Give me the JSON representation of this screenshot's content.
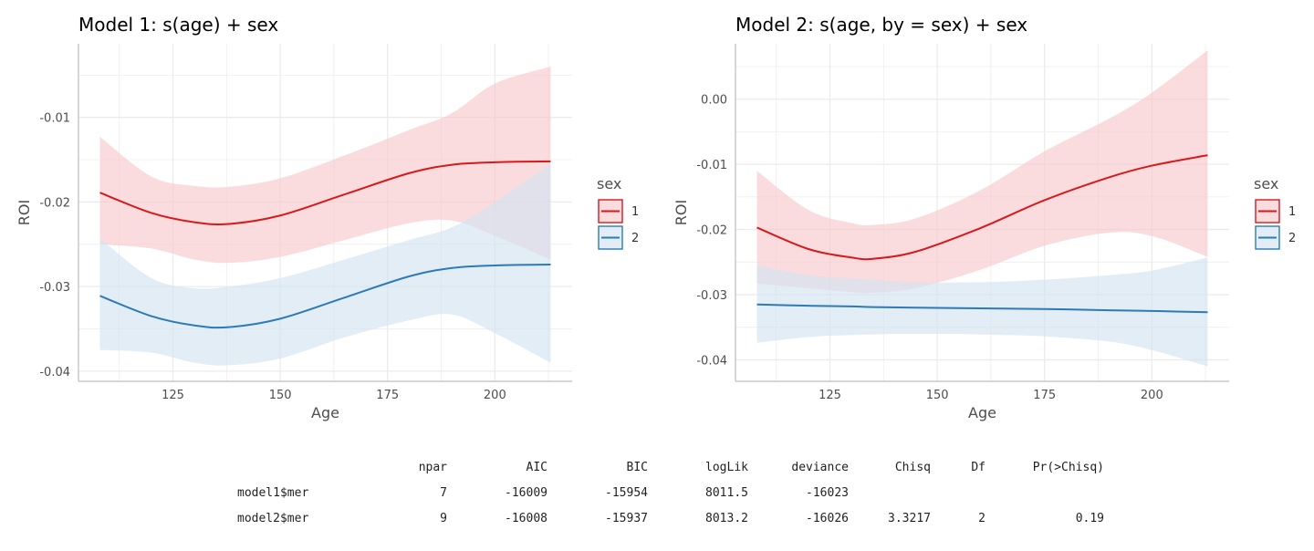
{
  "chart_data": [
    {
      "type": "line",
      "title": "Model 1: s(age) + sex",
      "xlabel": "Age",
      "ylabel": "ROI",
      "xlim": [
        103,
        218
      ],
      "ylim": [
        -0.0412,
        -0.0013
      ],
      "xticks": [
        125,
        150,
        175,
        200
      ],
      "xtick_labels": [
        "125",
        "150",
        "175",
        "200"
      ],
      "yticks": [
        -0.01,
        -0.02,
        -0.03,
        -0.04
      ],
      "ytick_labels": [
        "-0.01",
        "-0.02",
        "-0.03",
        "-0.04"
      ],
      "grid": true,
      "legend": {
        "title": "sex",
        "position": "right"
      },
      "x": [
        108,
        120,
        130,
        138,
        150,
        165,
        180,
        190,
        200,
        213
      ],
      "series": [
        {
          "name": "1",
          "color": "#d7191c",
          "fill": "#f8c9cc",
          "values": [
            -0.0189,
            -0.0213,
            -0.0224,
            -0.0226,
            -0.0216,
            -0.0191,
            -0.0166,
            -0.0156,
            -0.0153,
            -0.0152
          ],
          "lower": [
            -0.025,
            -0.0255,
            -0.0268,
            -0.0272,
            -0.0265,
            -0.0245,
            -0.0225,
            -0.0222,
            -0.024,
            -0.0268
          ],
          "upper": [
            -0.0123,
            -0.017,
            -0.0181,
            -0.0182,
            -0.0172,
            -0.0145,
            -0.0115,
            -0.0095,
            -0.006,
            -0.004
          ]
        },
        {
          "name": "2",
          "color": "#2c7bb6",
          "fill": "#d3e3f1",
          "values": [
            -0.0311,
            -0.0335,
            -0.0346,
            -0.0348,
            -0.0338,
            -0.0313,
            -0.0288,
            -0.0278,
            -0.0275,
            -0.0274
          ],
          "lower": [
            -0.0375,
            -0.0378,
            -0.039,
            -0.0393,
            -0.0385,
            -0.036,
            -0.034,
            -0.0333,
            -0.0355,
            -0.039
          ],
          "upper": [
            -0.0243,
            -0.029,
            -0.0302,
            -0.03,
            -0.029,
            -0.0268,
            -0.0245,
            -0.023,
            -0.02,
            -0.0155
          ]
        }
      ]
    },
    {
      "type": "line",
      "title": "Model 2: s(age, by = sex) + sex",
      "xlabel": "Age",
      "ylabel": "ROI",
      "xlim": [
        103,
        218
      ],
      "ylim": [
        -0.0433,
        0.0085
      ],
      "xticks": [
        125,
        150,
        175,
        200
      ],
      "xtick_labels": [
        "125",
        "150",
        "175",
        "200"
      ],
      "yticks": [
        0.0,
        -0.01,
        -0.02,
        -0.03,
        -0.04
      ],
      "ytick_labels": [
        "0.00",
        "-0.01",
        "-0.02",
        "-0.03",
        "-0.04"
      ],
      "grid": true,
      "legend": {
        "title": "sex",
        "position": "right"
      },
      "x": [
        108,
        120,
        130,
        135,
        145,
        160,
        175,
        190,
        200,
        213
      ],
      "series": [
        {
          "name": "1",
          "color": "#d7191c",
          "fill": "#f8c9cc",
          "values": [
            -0.0197,
            -0.023,
            -0.0243,
            -0.0245,
            -0.0234,
            -0.0198,
            -0.0155,
            -0.012,
            -0.0102,
            -0.0086
          ],
          "lower": [
            -0.0283,
            -0.029,
            -0.0296,
            -0.0297,
            -0.029,
            -0.0262,
            -0.0225,
            -0.0205,
            -0.021,
            -0.0242
          ],
          "upper": [
            -0.011,
            -0.017,
            -0.019,
            -0.0193,
            -0.0183,
            -0.014,
            -0.008,
            -0.003,
            0.001,
            0.0075
          ]
        },
        {
          "name": "2",
          "color": "#2c7bb6",
          "fill": "#d3e3f1",
          "values": [
            -0.0315,
            -0.0317,
            -0.0318,
            -0.0319,
            -0.032,
            -0.0321,
            -0.0322,
            -0.0324,
            -0.0325,
            -0.0327
          ],
          "lower": [
            -0.0374,
            -0.0365,
            -0.0362,
            -0.0361,
            -0.036,
            -0.0361,
            -0.0364,
            -0.0372,
            -0.0385,
            -0.041
          ],
          "upper": [
            -0.0255,
            -0.027,
            -0.0275,
            -0.0277,
            -0.0281,
            -0.0281,
            -0.0277,
            -0.027,
            -0.0263,
            -0.0243
          ]
        }
      ]
    }
  ],
  "anova_table": {
    "headers": [
      "",
      "npar",
      "AIC",
      "BIC",
      "logLik",
      "deviance",
      "Chisq",
      "Df",
      "Pr(>Chisq)"
    ],
    "rows": [
      [
        "model1$mer",
        "7",
        "-16009",
        "-15954",
        "8011.5",
        "-16023",
        "",
        "",
        ""
      ],
      [
        "model2$mer",
        "9",
        "-16008",
        "-15937",
        "8013.2",
        "-16026",
        "3.3217",
        "2",
        "0.19"
      ]
    ]
  }
}
